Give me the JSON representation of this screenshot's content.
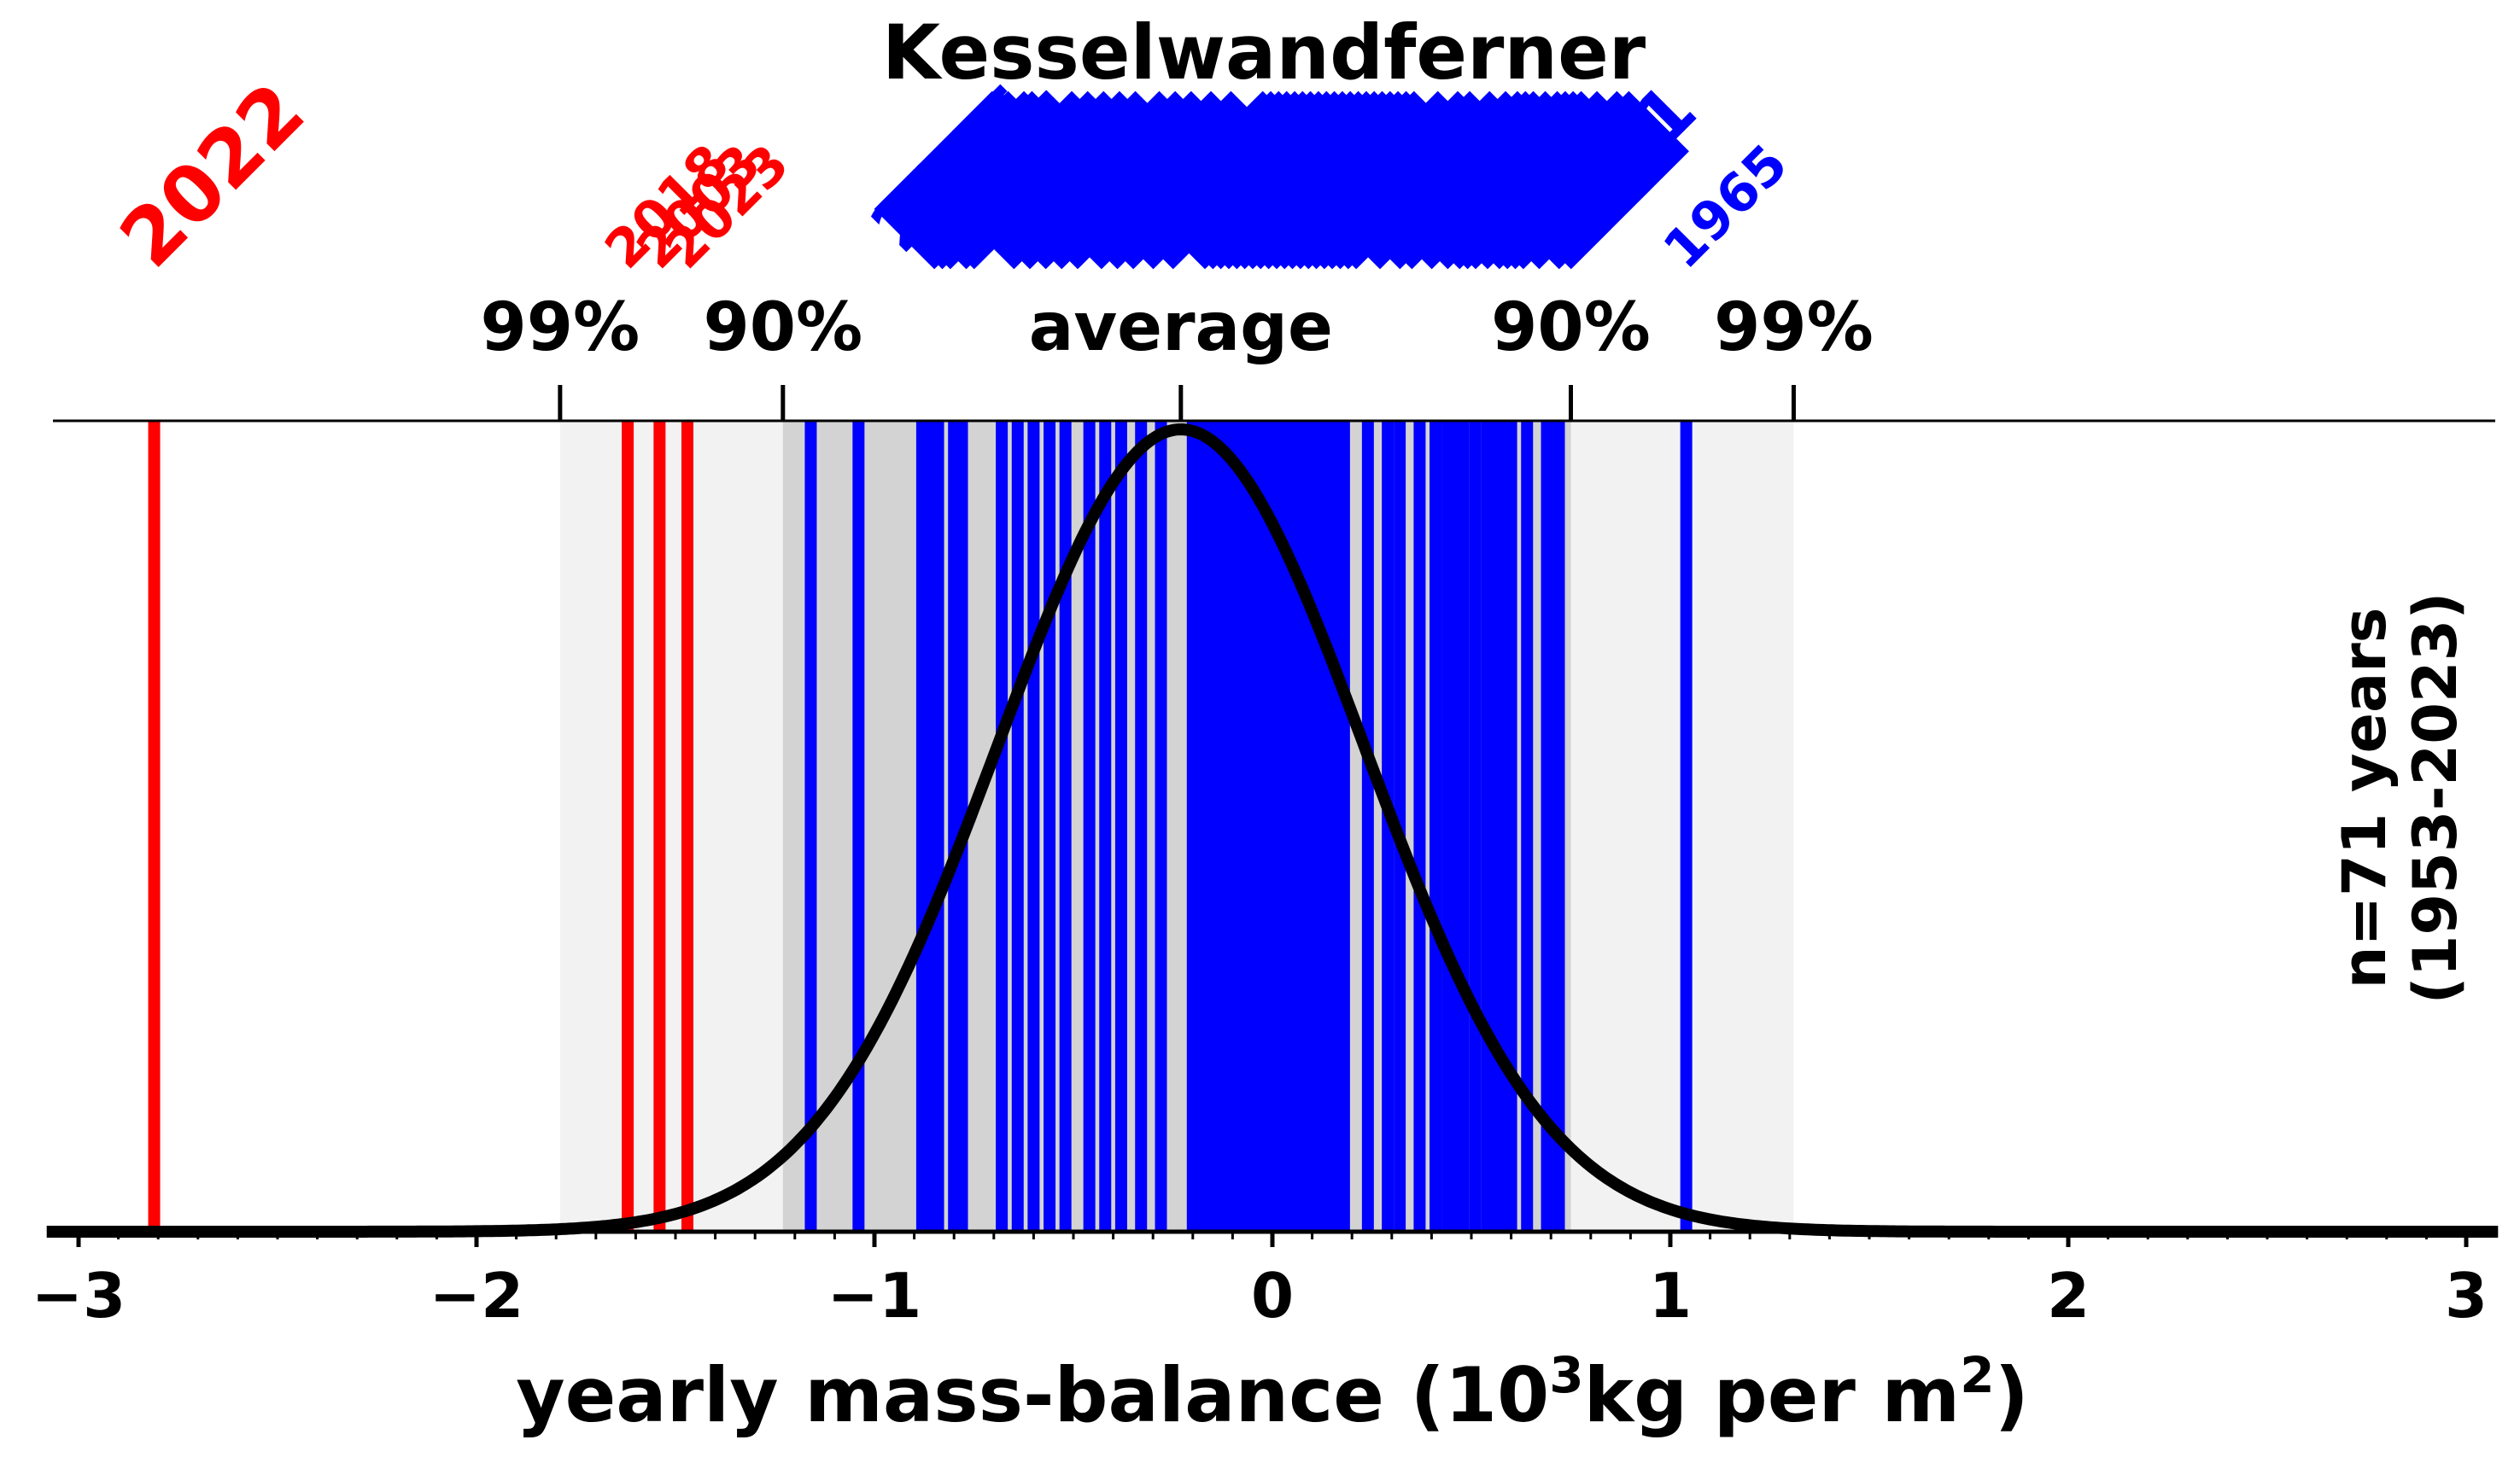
{
  "chart_data": {
    "type": "line",
    "title": "Kesselwandferner",
    "xlabel": "yearly mass-balance (10",
    "xlabel_sup1": "3",
    "xlabel_mid": "kg per m",
    "xlabel_sup2": "2",
    "xlabel_end": ")",
    "x_ticks": [
      "−3",
      "−2",
      "−1",
      "0",
      "1",
      "2",
      "3"
    ],
    "x_tick_values": [
      -3,
      -2,
      -1,
      0,
      1,
      2,
      3
    ],
    "xlim": [
      -3.08,
      3.08
    ],
    "annotation": "n=71 years",
    "annotation2": "(1953-2023)",
    "distribution": {
      "mean": -0.23,
      "sd": 0.46
    },
    "reference_lines": [
      {
        "label": "99%",
        "value": -1.79
      },
      {
        "label": "90%",
        "value": -1.23
      },
      {
        "label": "average",
        "value": -0.23
      },
      {
        "label": "90%",
        "value": 0.75
      },
      {
        "label": "99%",
        "value": 1.31
      }
    ],
    "bands": [
      {
        "from": -1.79,
        "to": 1.31,
        "color": "#f2f2f2"
      },
      {
        "from": -1.23,
        "to": 0.75,
        "color": "#d3d3d3"
      }
    ],
    "extreme_years": [
      {
        "year": "2022",
        "value": -2.81
      },
      {
        "year": "2018",
        "value": -1.62
      },
      {
        "year": "2003",
        "value": -1.54
      },
      {
        "year": "2023",
        "value": -1.47
      }
    ],
    "blue_year_labels": [
      {
        "year": "2015",
        "value": -0.93
      },
      {
        "year": "2011",
        "value": -0.8
      },
      {
        "year": "1971",
        "value": 0.72
      },
      {
        "year": "1965",
        "value": 1.04
      }
    ],
    "other_years": [
      -1.16,
      -1.04,
      -0.88,
      -0.86,
      -0.84,
      -0.8,
      -0.78,
      -0.68,
      -0.64,
      -0.6,
      -0.56,
      -0.52,
      -0.46,
      -0.42,
      -0.38,
      -0.33,
      -0.28,
      -0.2,
      -0.18,
      -0.16,
      -0.14,
      -0.12,
      -0.1,
      -0.08,
      -0.06,
      -0.04,
      -0.02,
      0.0,
      0.02,
      0.04,
      0.06,
      0.08,
      0.1,
      0.12,
      0.14,
      0.16,
      0.18,
      0.24,
      0.29,
      0.32,
      0.37,
      0.41,
      0.44,
      0.46,
      0.48,
      0.51,
      0.54,
      0.56,
      0.58,
      0.6,
      0.64,
      0.69,
      0.72,
      1.04
    ],
    "colors": {
      "negative_extreme": "#ff0000",
      "other_years": "#0000ff",
      "curve": "#000000",
      "band_99": "#f2f2f2",
      "band_90": "#d3d3d3"
    }
  }
}
